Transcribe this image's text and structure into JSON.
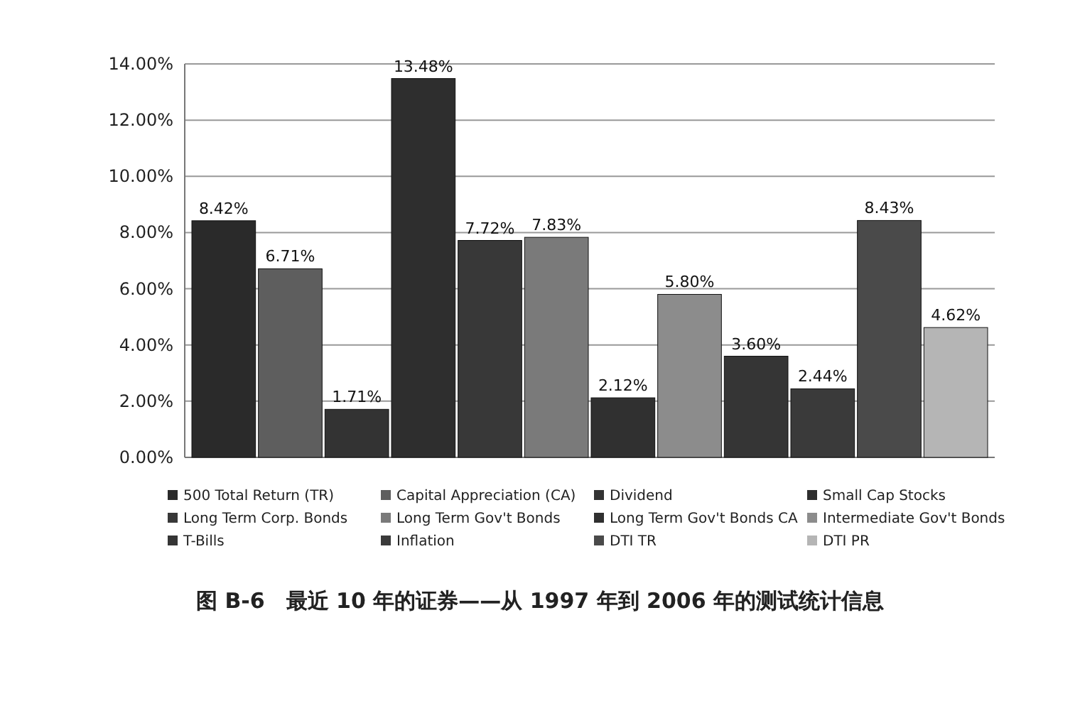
{
  "chart_data": {
    "type": "bar",
    "title": "图 B-6　最近 10 年的证券——从 1997 年到 2006 年的测试统计信息",
    "categories": [
      null
    ],
    "series": [
      {
        "name": "500 Total Return (TR)",
        "color": "#2a2a2a",
        "values": [
          8.42
        ],
        "value_labels": [
          "8.42%"
        ]
      },
      {
        "name": "Capital Appreciation (CA)",
        "color": "#5e5e5e",
        "values": [
          6.71
        ],
        "value_labels": [
          "6.71%"
        ]
      },
      {
        "name": "Dividend",
        "color": "#333333",
        "values": [
          1.71
        ],
        "value_labels": [
          "1.71%"
        ]
      },
      {
        "name": "Small Cap Stocks",
        "color": "#2e2e2e",
        "values": [
          13.48
        ],
        "value_labels": [
          "13.48%"
        ]
      },
      {
        "name": "Long Term Corp. Bonds",
        "color": "#383838",
        "values": [
          7.72
        ],
        "value_labels": [
          "7.72%"
        ]
      },
      {
        "name": "Long Term Gov't Bonds",
        "color": "#7a7a7a",
        "values": [
          7.83
        ],
        "value_labels": [
          "7.83%"
        ]
      },
      {
        "name": "Long Term Gov't Bonds CA",
        "color": "#303030",
        "values": [
          2.12
        ],
        "value_labels": [
          "2.12%"
        ]
      },
      {
        "name": "Intermediate Gov't Bonds",
        "color": "#8c8c8c",
        "values": [
          5.8
        ],
        "value_labels": [
          "5.80%"
        ]
      },
      {
        "name": "T-Bills",
        "color": "#353535",
        "values": [
          3.6
        ],
        "value_labels": [
          "3.60%"
        ]
      },
      {
        "name": "Inflation",
        "color": "#3a3a3a",
        "values": [
          2.44
        ],
        "value_labels": [
          "2.44%"
        ]
      },
      {
        "name": "DTI TR",
        "color": "#4a4a4a",
        "values": [
          8.43
        ],
        "value_labels": [
          "8.43%"
        ]
      },
      {
        "name": "DTI PR",
        "color": "#b5b5b5",
        "values": [
          4.62
        ],
        "value_labels": [
          "4.62%"
        ]
      }
    ],
    "ylim": [
      0,
      14
    ],
    "yticks": [
      {
        "value": 0,
        "label": "0.00%"
      },
      {
        "value": 2,
        "label": "2.00%"
      },
      {
        "value": 4,
        "label": "4.00%"
      },
      {
        "value": 6,
        "label": "6.00%"
      },
      {
        "value": 8,
        "label": "8.00%"
      },
      {
        "value": 10,
        "label": "10.00%"
      },
      {
        "value": 12,
        "label": "12.00%"
      },
      {
        "value": 14,
        "label": "14.00%"
      }
    ],
    "grid": true,
    "legend": "bottom",
    "tick_labels": "y"
  }
}
